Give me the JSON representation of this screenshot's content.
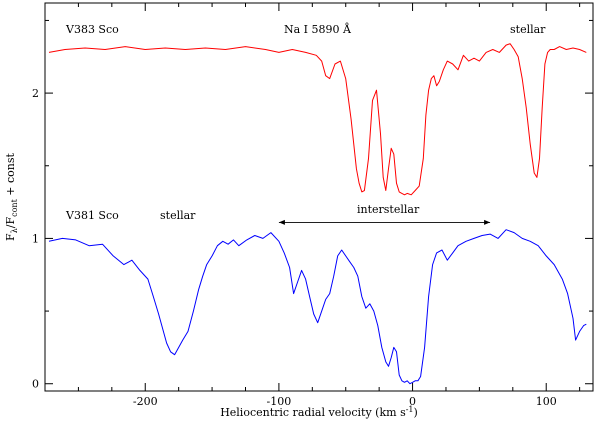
{
  "chart_data": {
    "type": "line",
    "title": "",
    "xlabel": "Heliocentric radial velocity (km s",
    "xlabel_sup": "-1",
    "xlabel_close": ")",
    "ylabel": "F",
    "ylabel_sub1": "λ",
    "ylabel_mid": "/F",
    "ylabel_sub2": "cont",
    "ylabel_tail": " + const",
    "xlim": [
      -275,
      135
    ],
    "ylim": [
      -0.05,
      2.62
    ],
    "xticks": [
      -200,
      -100,
      0,
      100
    ],
    "xtick_labels": [
      "-200",
      "-100",
      "0",
      "100"
    ],
    "yticks": [
      0,
      1,
      2
    ],
    "ytick_labels": [
      "0",
      "1",
      "2"
    ],
    "grid": false,
    "annotations": {
      "v383": "V383 Sco",
      "nai": "Na I 5890 Å",
      "stellar_top": "stellar",
      "v381": "V381 Sco",
      "stellar_bottom": "stellar",
      "interstellar": "interstellar"
    },
    "interstellar_arrow": {
      "x_start": -100,
      "x_end": 58,
      "y": 1.11
    },
    "series": [
      {
        "color": "#ff0000",
        "x": [
          -272,
          -260,
          -245,
          -230,
          -215,
          -200,
          -185,
          -170,
          -155,
          -140,
          -125,
          -110,
          -100,
          -90,
          -80,
          -72,
          -68,
          -65,
          -62,
          -58,
          -54,
          -50,
          -46,
          -42,
          -40,
          -38,
          -36,
          -33,
          -30,
          -27,
          -24,
          -22,
          -20,
          -18,
          -16,
          -14,
          -12,
          -10,
          -8,
          -6,
          -4,
          -1,
          2,
          5,
          8,
          10,
          12,
          14,
          16,
          18,
          20,
          23,
          26,
          30,
          34,
          38,
          42,
          46,
          50,
          55,
          60,
          65,
          70,
          73,
          76,
          79,
          82,
          85,
          88,
          91,
          93,
          95,
          97,
          99,
          101,
          103,
          106,
          110,
          115,
          120,
          125,
          130
        ],
        "y": [
          2.28,
          2.3,
          2.31,
          2.3,
          2.32,
          2.3,
          2.31,
          2.3,
          2.31,
          2.3,
          2.32,
          2.3,
          2.28,
          2.3,
          2.28,
          2.26,
          2.22,
          2.12,
          2.1,
          2.2,
          2.22,
          2.1,
          1.82,
          1.48,
          1.38,
          1.32,
          1.33,
          1.55,
          1.95,
          2.02,
          1.72,
          1.42,
          1.33,
          1.48,
          1.62,
          1.58,
          1.38,
          1.32,
          1.31,
          1.3,
          1.31,
          1.3,
          1.33,
          1.36,
          1.55,
          1.85,
          2.02,
          2.1,
          2.12,
          2.05,
          2.08,
          2.16,
          2.22,
          2.2,
          2.16,
          2.26,
          2.22,
          2.24,
          2.22,
          2.28,
          2.3,
          2.28,
          2.33,
          2.34,
          2.3,
          2.25,
          2.1,
          1.9,
          1.65,
          1.45,
          1.42,
          1.55,
          1.9,
          2.2,
          2.28,
          2.3,
          2.3,
          2.32,
          2.3,
          2.31,
          2.3,
          2.28
        ]
      },
      {
        "color": "#0000ff",
        "x": [
          -272,
          -262,
          -252,
          -242,
          -232,
          -224,
          -216,
          -210,
          -204,
          -198,
          -194,
          -190,
          -187,
          -184,
          -181,
          -178,
          -175,
          -172,
          -168,
          -164,
          -160,
          -157,
          -154,
          -150,
          -146,
          -142,
          -138,
          -134,
          -130,
          -124,
          -118,
          -112,
          -106,
          -100,
          -96,
          -92,
          -89,
          -86,
          -83,
          -80,
          -77,
          -74,
          -71,
          -68,
          -65,
          -62,
          -59,
          -56,
          -53,
          -50,
          -47,
          -44,
          -41,
          -38,
          -35,
          -32,
          -29,
          -26,
          -23,
          -20,
          -18,
          -16,
          -14,
          -12,
          -10,
          -8,
          -6,
          -4,
          -2,
          0,
          2,
          4,
          6,
          9,
          12,
          15,
          18,
          22,
          26,
          30,
          34,
          40,
          46,
          52,
          58,
          64,
          70,
          76,
          82,
          88,
          94,
          100,
          106,
          112,
          116,
          120,
          122,
          125,
          128,
          130
        ],
        "y": [
          0.98,
          1.0,
          0.99,
          0.95,
          0.96,
          0.88,
          0.82,
          0.85,
          0.78,
          0.72,
          0.6,
          0.48,
          0.38,
          0.28,
          0.22,
          0.2,
          0.25,
          0.3,
          0.36,
          0.5,
          0.65,
          0.74,
          0.82,
          0.88,
          0.95,
          0.98,
          0.96,
          0.99,
          0.95,
          0.99,
          1.02,
          1.0,
          1.04,
          0.98,
          0.9,
          0.8,
          0.62,
          0.7,
          0.78,
          0.72,
          0.6,
          0.48,
          0.42,
          0.5,
          0.58,
          0.62,
          0.74,
          0.88,
          0.92,
          0.88,
          0.84,
          0.8,
          0.74,
          0.6,
          0.52,
          0.55,
          0.5,
          0.4,
          0.25,
          0.15,
          0.12,
          0.18,
          0.25,
          0.22,
          0.06,
          0.02,
          0.01,
          0.02,
          0.0,
          0.01,
          0.02,
          0.02,
          0.05,
          0.25,
          0.6,
          0.82,
          0.9,
          0.92,
          0.85,
          0.9,
          0.95,
          0.98,
          1.0,
          1.02,
          1.03,
          1.0,
          1.06,
          1.04,
          1.0,
          0.98,
          0.95,
          0.88,
          0.82,
          0.72,
          0.62,
          0.45,
          0.3,
          0.36,
          0.4,
          0.41
        ]
      }
    ]
  }
}
